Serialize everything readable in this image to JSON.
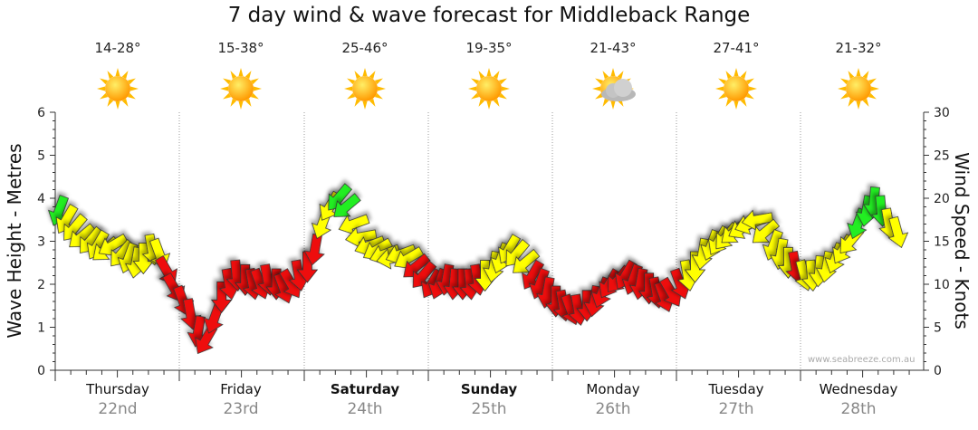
{
  "title": "7 day wind & wave forecast for Middleback Range",
  "watermark": "www.seabreeze.com.au",
  "days": [
    {
      "name": "Thursday",
      "date": "22nd",
      "temp": "14-28°",
      "icon": "sun-icon",
      "bold": false
    },
    {
      "name": "Friday",
      "date": "23rd",
      "temp": "15-38°",
      "icon": "sun-icon",
      "bold": false
    },
    {
      "name": "Saturday",
      "date": "24th",
      "temp": "25-46°",
      "icon": "sun-icon",
      "bold": true
    },
    {
      "name": "Sunday",
      "date": "25th",
      "temp": "19-35°",
      "icon": "sun-icon",
      "bold": true
    },
    {
      "name": "Monday",
      "date": "26th",
      "temp": "21-43°",
      "icon": "sun-cloud-icon",
      "bold": false
    },
    {
      "name": "Tuesday",
      "date": "27th",
      "temp": "27-41°",
      "icon": "sun-icon",
      "bold": false
    },
    {
      "name": "Wednesday",
      "date": "28th",
      "temp": "21-32°",
      "icon": "sun-icon",
      "bold": false
    }
  ],
  "colors": {
    "red": "#ee1111",
    "yellow": "#ffff00",
    "green": "#22ee22",
    "grid": "#999999",
    "sun": "#ffaa00"
  },
  "chart_data": {
    "type": "line",
    "title": "7 day wind & wave forecast for Middleback Range",
    "ylabel_left": "Wave Height - Metres",
    "ylabel_right": "Wind Speed - Knots",
    "ylim_left": [
      0,
      6
    ],
    "ylim_right": [
      0,
      30
    ],
    "yticks_left": [
      "0",
      "1",
      "2",
      "3",
      "4",
      "5",
      "6"
    ],
    "yticks_right": [
      "0",
      "5",
      "10",
      "15",
      "20",
      "25",
      "30"
    ],
    "x_unit": "days from start of Thursday 22nd",
    "series": [
      {
        "axis": "right",
        "x": [
          0.0,
          0.06,
          0.12,
          0.18,
          0.25,
          0.31,
          0.37,
          0.43,
          0.5,
          0.56,
          0.62,
          0.68,
          0.75,
          0.81,
          0.87,
          0.93,
          1.0,
          1.06,
          1.12,
          1.18,
          1.25,
          1.31,
          1.37,
          1.43,
          1.5,
          1.56,
          1.62,
          1.68,
          1.75,
          1.81,
          1.87,
          1.93,
          2.0,
          2.06,
          2.12,
          2.18,
          2.25,
          2.31,
          2.37,
          2.43,
          2.5,
          2.56,
          2.62,
          2.68,
          2.75,
          2.81,
          2.87,
          2.93,
          3.0,
          3.06,
          3.12,
          3.18,
          3.25,
          3.31,
          3.37,
          3.43,
          3.5,
          3.56,
          3.62,
          3.68,
          3.75,
          3.81,
          3.87,
          3.93,
          4.0,
          4.06,
          4.12,
          4.18,
          4.25,
          4.31,
          4.37,
          4.43,
          4.5,
          4.56,
          4.62,
          4.68,
          4.75,
          4.81,
          4.87,
          4.93,
          5.0,
          5.06,
          5.12,
          5.18,
          5.25,
          5.31,
          5.37,
          5.43,
          5.5,
          5.56,
          5.62,
          5.68,
          5.75,
          5.81,
          5.87,
          5.93,
          6.0,
          6.06,
          6.12,
          6.18,
          6.25,
          6.31,
          6.37,
          6.43,
          6.5,
          6.56,
          6.62,
          6.68,
          6.75
        ],
        "wind_kts": [
          18.5,
          17.5,
          16.5,
          15.5,
          15,
          14.5,
          14,
          14.5,
          13.5,
          13,
          12.5,
          13,
          14,
          13.5,
          11.5,
          9.5,
          8,
          6.5,
          4.5,
          3.5,
          6,
          8.5,
          10,
          11,
          10.5,
          10,
          10,
          10.5,
          10,
          9.5,
          10,
          11,
          12,
          14,
          17,
          19,
          20,
          19,
          17,
          15.5,
          14.5,
          14,
          13.5,
          13,
          13.5,
          13,
          12,
          11,
          10,
          10,
          10.5,
          10,
          10,
          10,
          10.5,
          11,
          12,
          13,
          14,
          13.5,
          12.5,
          11,
          10,
          9,
          8,
          7.5,
          7,
          7,
          7.5,
          8,
          9,
          10,
          10.5,
          11,
          10.5,
          10,
          9.5,
          9,
          8.5,
          9,
          10,
          11,
          12,
          13.5,
          14.5,
          15,
          15.5,
          16,
          16.5,
          17,
          17.5,
          16,
          14.5,
          13.5,
          12.5,
          12,
          11,
          11,
          11.5,
          12,
          13,
          14,
          15,
          17,
          18.5,
          19.5,
          18.5,
          17,
          16
        ],
        "wind_band": [
          "green",
          "yellow",
          "yellow",
          "yellow",
          "yellow",
          "yellow",
          "yellow",
          "yellow",
          "yellow",
          "yellow",
          "yellow",
          "yellow",
          "yellow",
          "yellow",
          "red",
          "red",
          "red",
          "red",
          "red",
          "red",
          "red",
          "red",
          "red",
          "red",
          "red",
          "red",
          "red",
          "red",
          "red",
          "red",
          "red",
          "red",
          "red",
          "red",
          "yellow",
          "yellow",
          "green",
          "green",
          "yellow",
          "yellow",
          "yellow",
          "yellow",
          "yellow",
          "yellow",
          "yellow",
          "yellow",
          "red",
          "red",
          "red",
          "red",
          "red",
          "red",
          "red",
          "red",
          "red",
          "yellow",
          "yellow",
          "yellow",
          "yellow",
          "yellow",
          "yellow",
          "red",
          "red",
          "red",
          "red",
          "red",
          "red",
          "red",
          "red",
          "red",
          "red",
          "red",
          "red",
          "red",
          "red",
          "red",
          "red",
          "red",
          "red",
          "red",
          "red",
          "yellow",
          "yellow",
          "yellow",
          "yellow",
          "yellow",
          "yellow",
          "yellow",
          "yellow",
          "yellow",
          "yellow",
          "yellow",
          "yellow",
          "yellow",
          "yellow",
          "red",
          "yellow",
          "yellow",
          "yellow",
          "yellow",
          "yellow",
          "yellow",
          "yellow",
          "green",
          "green",
          "green",
          "green",
          "yellow",
          "yellow"
        ],
        "dir_deg": [
          200,
          210,
          220,
          230,
          220,
          210,
          230,
          240,
          220,
          200,
          190,
          180,
          170,
          160,
          150,
          150,
          160,
          170,
          190,
          210,
          200,
          180,
          170,
          175,
          180,
          170,
          160,
          170,
          180,
          160,
          150,
          170,
          180,
          190,
          200,
          210,
          220,
          230,
          250,
          260,
          250,
          240,
          250,
          260,
          250,
          240,
          230,
          220,
          210,
          200,
          190,
          185,
          180,
          175,
          170,
          180,
          190,
          200,
          210,
          220,
          230,
          210,
          200,
          190,
          180,
          170,
          160,
          170,
          180,
          190,
          200,
          210,
          220,
          210,
          200,
          190,
          180,
          170,
          160,
          150,
          160,
          170,
          180,
          190,
          200,
          210,
          220,
          230,
          240,
          250,
          260,
          230,
          200,
          190,
          180,
          170,
          165,
          175,
          185,
          190,
          200,
          210,
          220,
          200,
          190,
          185,
          175,
          170,
          165
        ]
      }
    ],
    "grid": true
  }
}
